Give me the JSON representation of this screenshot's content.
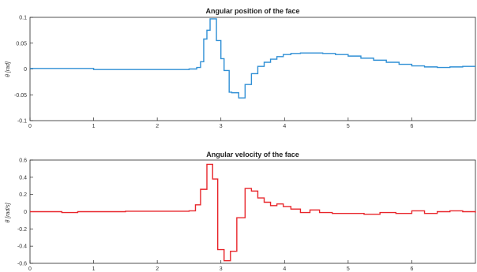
{
  "chart_data": [
    {
      "type": "line",
      "title": "Angular position of the face",
      "xlabel": "",
      "ylabel": "θ [rad]",
      "xlim": [
        0,
        7
      ],
      "ylim": [
        -0.1,
        0.1
      ],
      "xticks": [
        "0",
        "1",
        "2",
        "3",
        "4",
        "5",
        "6"
      ],
      "yticks": [
        "-0.1",
        "-0.05",
        "0",
        "0.05",
        "0.1"
      ],
      "grid": false,
      "series": [
        {
          "color": "#2f8fd5",
          "step": true,
          "x": [
            0,
            0.5,
            1.0,
            1.5,
            2.0,
            2.5,
            2.62,
            2.68,
            2.73,
            2.78,
            2.83,
            2.93,
            3.0,
            3.05,
            3.13,
            3.17,
            3.28,
            3.38,
            3.48,
            3.58,
            3.68,
            3.78,
            3.88,
            3.98,
            4.1,
            4.25,
            4.4,
            4.6,
            4.8,
            5.0,
            5.2,
            5.4,
            5.6,
            5.8,
            6.0,
            6.2,
            6.4,
            6.6,
            6.8,
            7.0
          ],
          "y": [
            0.001,
            0.001,
            -0.001,
            -0.001,
            -0.001,
            0.0,
            0.003,
            0.014,
            0.058,
            0.075,
            0.097,
            0.055,
            0.02,
            -0.003,
            -0.045,
            -0.046,
            -0.056,
            -0.03,
            -0.009,
            0.005,
            0.013,
            0.019,
            0.024,
            0.028,
            0.03,
            0.031,
            0.031,
            0.03,
            0.028,
            0.025,
            0.021,
            0.017,
            0.013,
            0.009,
            0.006,
            0.004,
            0.003,
            0.004,
            0.005,
            0.005
          ]
        }
      ]
    },
    {
      "type": "line",
      "title": "Angular velocity of the face",
      "xlabel": "",
      "ylabel": "θ̇ [rad/s]",
      "xlim": [
        0,
        7
      ],
      "ylim": [
        -0.6,
        0.6
      ],
      "xticks": [
        "0",
        "1",
        "2",
        "3",
        "4",
        "5",
        "6"
      ],
      "yticks": [
        "-0.6",
        "-0.4",
        "-0.2",
        "0",
        "0.2",
        "0.4",
        "0.6"
      ],
      "grid": false,
      "series": [
        {
          "color": "#e8252a",
          "step": true,
          "x": [
            0,
            0.25,
            0.5,
            0.75,
            1.0,
            1.5,
            2.0,
            2.5,
            2.6,
            2.68,
            2.78,
            2.87,
            2.95,
            3.05,
            3.15,
            3.25,
            3.38,
            3.48,
            3.58,
            3.68,
            3.78,
            3.88,
            3.98,
            4.1,
            4.25,
            4.4,
            4.55,
            4.75,
            5.0,
            5.25,
            5.5,
            5.75,
            6.0,
            6.2,
            6.4,
            6.6,
            6.8,
            7.0
          ],
          "y": [
            0.0,
            0.0,
            -0.01,
            0.0,
            0.0,
            0.005,
            0.005,
            0.01,
            0.08,
            0.26,
            0.55,
            0.38,
            -0.44,
            -0.57,
            -0.46,
            -0.07,
            0.27,
            0.24,
            0.16,
            0.11,
            0.07,
            0.09,
            0.06,
            0.03,
            -0.01,
            0.02,
            -0.01,
            -0.02,
            -0.02,
            -0.03,
            -0.01,
            -0.02,
            0.01,
            -0.02,
            0.0,
            0.01,
            0.0,
            -0.01
          ]
        }
      ]
    }
  ]
}
